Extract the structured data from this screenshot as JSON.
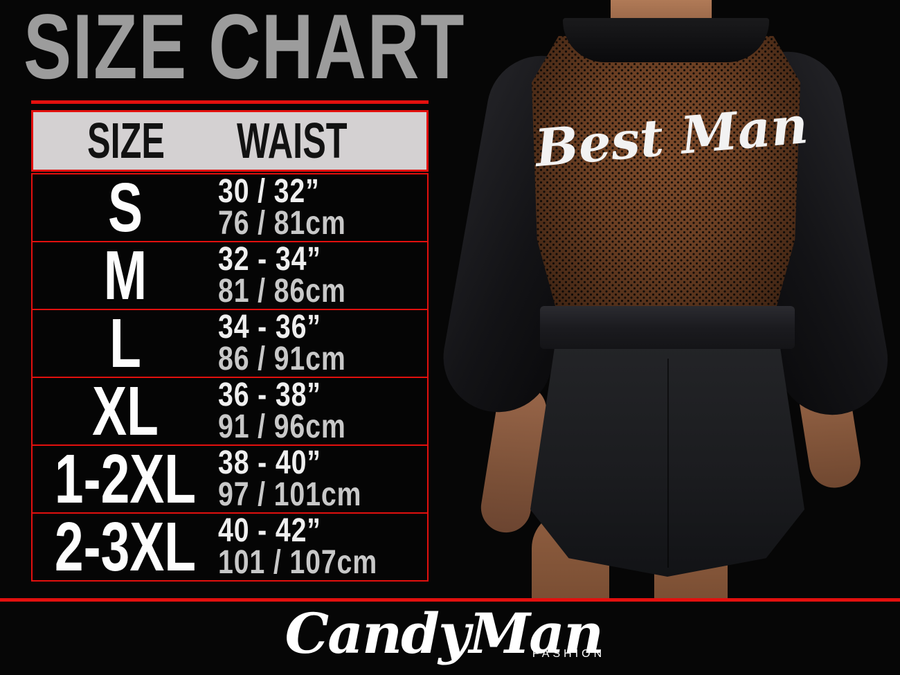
{
  "page": {
    "title": "SIZE CHART",
    "colors": {
      "background": "#060606",
      "accent_red": "#e3100e",
      "title_gray": "#9c9c9c",
      "header_bg": "#d4d1d2"
    }
  },
  "size_table": {
    "headers": [
      "SIZE",
      "WAIST"
    ],
    "rows": [
      {
        "size": "S",
        "waist_in": "30 / 32”",
        "waist_cm": "76 / 81cm"
      },
      {
        "size": "M",
        "waist_in": "32 - 34”",
        "waist_cm": "81 / 86cm"
      },
      {
        "size": "L",
        "waist_in": "34 - 36”",
        "waist_cm": "86 / 91cm"
      },
      {
        "size": "XL",
        "waist_in": "36 - 38”",
        "waist_cm": "91 / 96cm"
      },
      {
        "size": "1-2XL",
        "waist_in": "38 - 40”",
        "waist_cm": "97 / 101cm"
      },
      {
        "size": "2-3XL",
        "waist_in": "40 - 42”",
        "waist_cm": "101 / 107cm"
      }
    ]
  },
  "photo": {
    "garment_text": "Best Man"
  },
  "brand": {
    "name": "CandyMan",
    "subtitle": "FASHION"
  },
  "chart_data": {
    "type": "table",
    "title": "SIZE CHART",
    "columns": [
      "SIZE",
      "WAIST (inches)",
      "WAIST (cm)"
    ],
    "rows": [
      [
        "S",
        "30 / 32\"",
        "76 / 81 cm"
      ],
      [
        "M",
        "32 - 34\"",
        "81 / 86 cm"
      ],
      [
        "L",
        "34 - 36\"",
        "86 / 91 cm"
      ],
      [
        "XL",
        "36 - 38\"",
        "91 / 96 cm"
      ],
      [
        "1-2XL",
        "38 - 40\"",
        "97 / 101 cm"
      ],
      [
        "2-3XL",
        "40 - 42\"",
        "101 / 107 cm"
      ]
    ]
  }
}
